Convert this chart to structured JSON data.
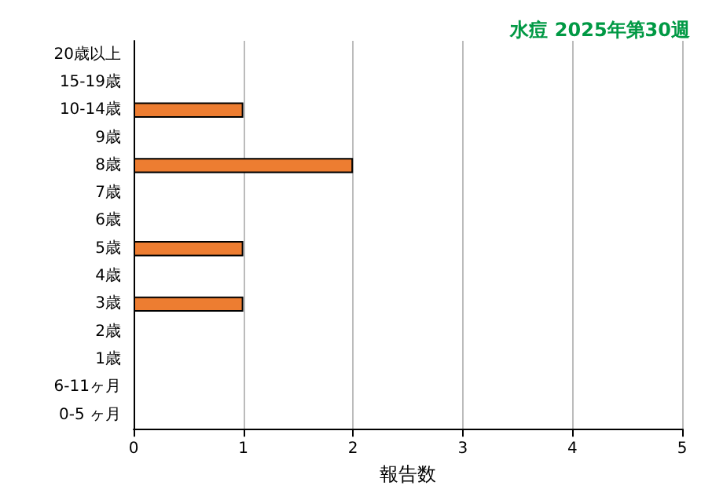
{
  "chart_data": {
    "type": "bar",
    "orientation": "horizontal",
    "title": "水痘 2025年第30週",
    "xlabel": "報告数",
    "categories": [
      "20歳以上",
      "15-19歳",
      "10-14歳",
      "9歳",
      "8歳",
      "7歳",
      "6歳",
      "5歳",
      "4歳",
      "3歳",
      "2歳",
      "1歳",
      "6-11ヶ月",
      "0-5 ヶ月"
    ],
    "values": [
      0,
      0,
      1,
      0,
      2,
      0,
      0,
      1,
      0,
      1,
      0,
      0,
      0,
      0
    ],
    "color": "#ed7d31",
    "xlim": [
      0,
      5
    ],
    "xticks": [
      0,
      1,
      2,
      3,
      4,
      5
    ],
    "grid": "x"
  }
}
